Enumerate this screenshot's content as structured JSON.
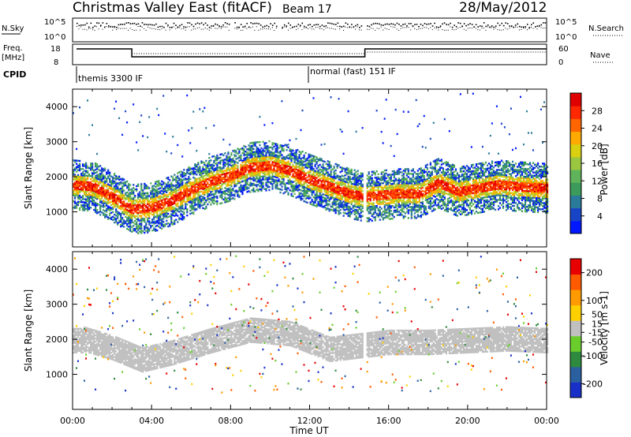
{
  "header": {
    "title": "Christmas Valley East (fitACF)",
    "beam": "Beam 17",
    "date": "28/May/2012"
  },
  "status_panels": {
    "nsky_label": "N.Sky",
    "nsky_ticks": [
      "10^5",
      "10^0"
    ],
    "nsearch_label": "N.Search",
    "nsearch_ticks": [
      "10^5",
      "10^0"
    ],
    "freq_label_1": "Freq.",
    "freq_label_2": "[MHz]",
    "freq_ticks": [
      "18",
      "8"
    ],
    "nave_label": "Nave",
    "nave_ticks": [
      "60",
      "0"
    ],
    "cpid_label": "CPID",
    "cpid_entries": [
      {
        "time_hours": 0.25,
        "label": "themis 3300 IF"
      },
      {
        "time_hours": 11.9,
        "label": "normal (fast) 151 IF"
      }
    ]
  },
  "chart_data": [
    {
      "type": "heatmap",
      "name": "power",
      "ylabel": "Slant Range [km]",
      "xlabel": "",
      "xlim": [
        0,
        24
      ],
      "ylim": [
        0,
        4500
      ],
      "yticks": [
        "1000",
        "2000",
        "3000",
        "4000"
      ],
      "colorbar": {
        "label": "Power [dB]",
        "ticks": [
          "4",
          "8",
          "12",
          "16",
          "20",
          "24",
          "28"
        ],
        "range": [
          0,
          32
        ],
        "colors": [
          "#0018ff",
          "#1844c8",
          "#2a7a9a",
          "#3c9a5a",
          "#5fb35a",
          "#9ac640",
          "#d8d010",
          "#ffaa00",
          "#ff6600",
          "#ff2800",
          "#e00000"
        ]
      },
      "main_echo_band_km": [
        {
          "t": 0.0,
          "range": 1800
        },
        {
          "t": 1.0,
          "range": 1750
        },
        {
          "t": 2.0,
          "range": 1450
        },
        {
          "t": 3.0,
          "range": 1100
        },
        {
          "t": 4.0,
          "range": 1150
        },
        {
          "t": 5.0,
          "range": 1350
        },
        {
          "t": 6.0,
          "range": 1650
        },
        {
          "t": 7.0,
          "range": 1900
        },
        {
          "t": 8.0,
          "range": 2050
        },
        {
          "t": 9.0,
          "range": 2300
        },
        {
          "t": 10.0,
          "range": 2350
        },
        {
          "t": 11.0,
          "range": 2200
        },
        {
          "t": 12.0,
          "range": 1950
        },
        {
          "t": 13.0,
          "range": 1750
        },
        {
          "t": 14.0,
          "range": 1550
        },
        {
          "t": 14.8,
          "range": 1450
        },
        {
          "t": 15.5,
          "range": 1500
        },
        {
          "t": 16.5,
          "range": 1550
        },
        {
          "t": 17.5,
          "range": 1550
        },
        {
          "t": 18.5,
          "range": 1850
        },
        {
          "t": 19.5,
          "range": 1600
        },
        {
          "t": 20.5,
          "range": 1700
        },
        {
          "t": 21.5,
          "range": 1800
        },
        {
          "t": 22.5,
          "range": 1750
        },
        {
          "t": 24.0,
          "range": 1700
        }
      ]
    },
    {
      "type": "heatmap",
      "name": "velocity",
      "ylabel": "Slant Range [km]",
      "xlabel": "Time UT",
      "xlim": [
        0,
        24
      ],
      "ylim": [
        0,
        4500
      ],
      "yticks": [
        "1000",
        "2000",
        "3000",
        "4000"
      ],
      "xticks": [
        "00:00",
        "04:00",
        "08:00",
        "12:00",
        "16:00",
        "20:00",
        "00:00"
      ],
      "colorbar": {
        "label": "Velocity [m s-1]",
        "ticks": [
          "200",
          "100",
          "50",
          "15",
          "-15",
          "-50",
          "-100",
          "-200"
        ],
        "range": [
          -250,
          250
        ],
        "colors": [
          "#1830c8",
          "#2a5fa0",
          "#2e8a3e",
          "#6acd2c",
          "#c0c0c0",
          "#ffd000",
          "#ff9a00",
          "#ff5a00",
          "#e80000"
        ]
      },
      "ground_scatter_band_km": [
        {
          "t": 0.5,
          "range": 2050
        },
        {
          "t": 2.0,
          "range": 1800
        },
        {
          "t": 3.5,
          "range": 1450
        },
        {
          "t": 5.0,
          "range": 1650
        },
        {
          "t": 7.0,
          "range": 2000
        },
        {
          "t": 9.0,
          "range": 2300
        },
        {
          "t": 11.0,
          "range": 2200
        },
        {
          "t": 13.0,
          "range": 1750
        },
        {
          "t": 16.0,
          "range": 1950
        },
        {
          "t": 18.0,
          "range": 1950
        },
        {
          "t": 20.0,
          "range": 2000
        },
        {
          "t": 22.0,
          "range": 2050
        },
        {
          "t": 24.0,
          "range": 2000
        }
      ]
    }
  ]
}
